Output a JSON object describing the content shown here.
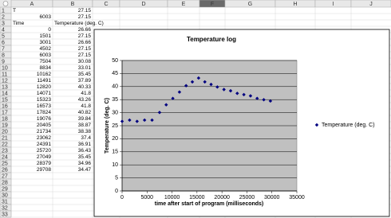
{
  "sheet": {
    "columns": [
      "A",
      "B",
      "C",
      "D",
      "E",
      "F",
      "G",
      "H",
      "I",
      "J"
    ],
    "row_labels": [
      "1",
      "2",
      "3",
      "4",
      "5",
      "6",
      "7",
      "8",
      "9",
      "10",
      "11",
      "12",
      "13",
      "14",
      "15",
      "16",
      "17",
      "18",
      "19",
      "20",
      "21",
      "22",
      "23",
      "24",
      "25",
      "26",
      "27",
      "28",
      "29",
      "30",
      "31",
      "32",
      "33"
    ],
    "rows": [
      [
        "T",
        "27.15"
      ],
      [
        "6003",
        "27.15"
      ],
      [
        "Time",
        "Temperature (deg. C)"
      ],
      [
        "0",
        "26.66"
      ],
      [
        "1501",
        "27.15"
      ],
      [
        "3001",
        "26.66"
      ],
      [
        "4502",
        "27.15"
      ],
      [
        "6003",
        "27.15"
      ],
      [
        "7504",
        "30.08"
      ],
      [
        "8834",
        "33.01"
      ],
      [
        "10162",
        "35.45"
      ],
      [
        "11491",
        "37.89"
      ],
      [
        "12820",
        "40.33"
      ],
      [
        "14071",
        "41.8"
      ],
      [
        "15323",
        "43.26"
      ],
      [
        "16573",
        "41.8"
      ],
      [
        "17824",
        "40.82"
      ],
      [
        "19076",
        "39.84"
      ],
      [
        "20405",
        "38.87"
      ],
      [
        "21734",
        "38.38"
      ],
      [
        "23062",
        "37.4"
      ],
      [
        "24391",
        "36.91"
      ],
      [
        "25720",
        "36.43"
      ],
      [
        "27049",
        "35.45"
      ],
      [
        "28379",
        "34.96"
      ],
      [
        "29708",
        "34.47"
      ]
    ]
  },
  "chart_data": {
    "type": "scatter",
    "title": "Temperature log",
    "x_label": "time after start of program (milliseconds)",
    "y_label": "Temperature (deg. C)",
    "x": [
      0,
      1501,
      3001,
      4502,
      6003,
      7504,
      8834,
      10162,
      11491,
      12820,
      14071,
      15323,
      16573,
      17824,
      19076,
      20405,
      21734,
      23062,
      24391,
      25720,
      27049,
      28379,
      29708
    ],
    "series": [
      {
        "name": "Temperature (deg. C)",
        "color": "#000080",
        "values": [
          26.66,
          27.15,
          26.66,
          27.15,
          27.15,
          30.08,
          33.01,
          35.45,
          37.89,
          40.33,
          41.8,
          43.26,
          41.8,
          40.82,
          39.84,
          38.87,
          38.38,
          37.4,
          36.91,
          36.43,
          35.45,
          34.96,
          34.47
        ]
      }
    ],
    "xlim": [
      0,
      35000
    ],
    "xticks": [
      0,
      5000,
      10000,
      15000,
      20000,
      25000,
      30000,
      35000
    ],
    "ylim": [
      0,
      50
    ],
    "yticks": [
      0,
      5,
      10,
      15,
      20,
      25,
      30,
      35,
      40,
      45,
      50
    ],
    "grid": true,
    "legend": "right"
  }
}
